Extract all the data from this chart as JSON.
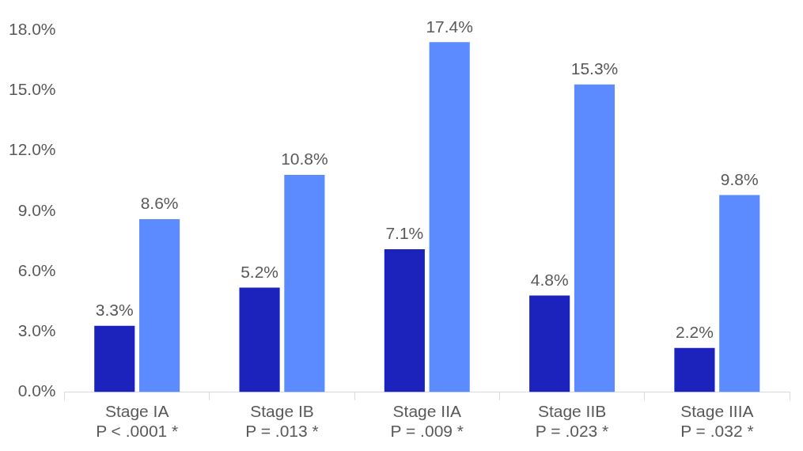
{
  "chart_data": {
    "type": "bar",
    "categories": [
      "Stage IA\nP < .0001 *",
      "Stage IB\nP = .013 *",
      "Stage IIA\nP = .009 *",
      "Stage IIB\nP = .023 *",
      "Stage IIIA\nP = .032 *"
    ],
    "series": [
      {
        "color": "#1c23bd",
        "values": [
          3.3,
          5.2,
          7.1,
          4.8,
          2.2
        ],
        "value_labels": [
          "3.3%",
          "5.2%",
          "7.1%",
          "4.8%",
          "2.2%"
        ]
      },
      {
        "color": "#5b8bff",
        "values": [
          8.6,
          10.8,
          17.4,
          15.3,
          9.8
        ],
        "value_labels": [
          "8.6%",
          "10.8%",
          "17.4%",
          "15.3%",
          "9.8%"
        ]
      }
    ],
    "ylim": [
      0,
      18
    ],
    "yticks": [
      {
        "value": 0,
        "label": "0.0%"
      },
      {
        "value": 3,
        "label": "3.0%"
      },
      {
        "value": 6,
        "label": "6.0%"
      },
      {
        "value": 9,
        "label": "9.0%"
      },
      {
        "value": 12,
        "label": "12.0%"
      },
      {
        "value": 15,
        "label": "15.0%"
      },
      {
        "value": 18,
        "label": "18.0%"
      }
    ],
    "grid": false,
    "legend": false
  }
}
